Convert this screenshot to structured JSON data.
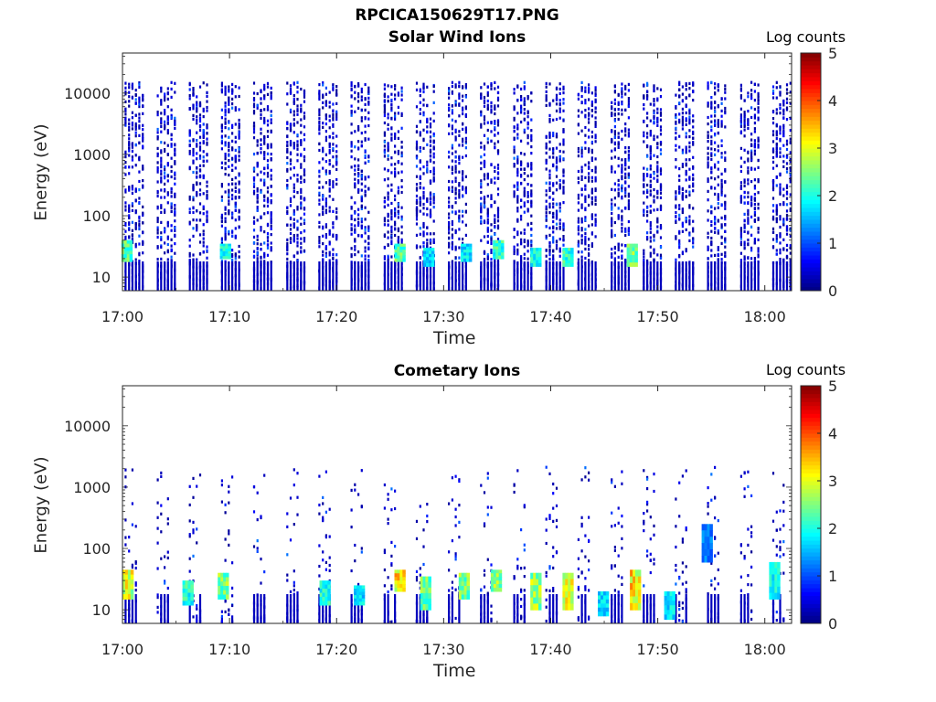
{
  "figure": {
    "title": "RPCICA150629T17.PNG"
  },
  "panels": [
    {
      "title": "Solar Wind Ions",
      "xlabel": "Time",
      "ylabel": "Energy (eV)",
      "colorbar_label": "Log counts"
    },
    {
      "title": "Cometary Ions",
      "xlabel": "Time",
      "ylabel": "Energy (eV)",
      "colorbar_label": "Log counts"
    }
  ],
  "chart_data": [
    {
      "type": "heatmap",
      "title": "Solar Wind Ions",
      "xlabel": "Time",
      "ylabel": "Energy (eV)",
      "x_ticks": [
        "17:00",
        "17:10",
        "17:20",
        "17:30",
        "17:40",
        "17:50",
        "18:00"
      ],
      "y_ticks": [
        10,
        100,
        1000,
        10000
      ],
      "y_scale": "log",
      "ylim": [
        6,
        45000
      ],
      "xlim_minutes": [
        0,
        62.5
      ],
      "colorbar": {
        "label": "Log counts",
        "ticks": [
          0,
          1,
          2,
          3,
          4,
          5
        ],
        "range": [
          0,
          5
        ],
        "colormap": "jet"
      },
      "sweep_start_minutes": [
        0.2,
        3.2,
        6.2,
        9.2,
        12.2,
        15.3,
        18.3,
        21.3,
        24.4,
        27.4,
        30.4,
        33.4,
        36.5,
        39.5,
        42.5,
        45.6,
        48.6,
        51.6,
        54.6,
        57.7,
        60.7
      ],
      "features": [
        {
          "t_minutes": 0.3,
          "energy_ev": [
            18,
            40
          ],
          "log_counts": 2.6
        },
        {
          "t_minutes": 9.5,
          "energy_ev": [
            20,
            35
          ],
          "log_counts": 2.2
        },
        {
          "t_minutes": 25.8,
          "energy_ev": [
            18,
            35
          ],
          "log_counts": 2.6
        },
        {
          "t_minutes": 28.5,
          "energy_ev": [
            15,
            30
          ],
          "log_counts": 2.0
        },
        {
          "t_minutes": 32.0,
          "energy_ev": [
            18,
            35
          ],
          "log_counts": 2.0
        },
        {
          "t_minutes": 35.0,
          "energy_ev": [
            20,
            40
          ],
          "log_counts": 2.4
        },
        {
          "t_minutes": 38.5,
          "energy_ev": [
            15,
            30
          ],
          "log_counts": 2.2
        },
        {
          "t_minutes": 41.5,
          "energy_ev": [
            15,
            30
          ],
          "log_counts": 2.4
        },
        {
          "t_minutes": 47.5,
          "energy_ev": [
            15,
            35
          ],
          "log_counts": 2.8
        }
      ],
      "grid": false
    },
    {
      "type": "heatmap",
      "title": "Cometary Ions",
      "xlabel": "Time",
      "ylabel": "Energy (eV)",
      "x_ticks": [
        "17:00",
        "17:10",
        "17:20",
        "17:30",
        "17:40",
        "17:50",
        "18:00"
      ],
      "y_ticks": [
        10,
        100,
        1000,
        10000
      ],
      "y_scale": "log",
      "ylim": [
        6,
        45000
      ],
      "xlim_minutes": [
        0,
        62.5
      ],
      "colorbar": {
        "label": "Log counts",
        "ticks": [
          0,
          1,
          2,
          3,
          4,
          5
        ],
        "range": [
          0,
          5
        ],
        "colormap": "jet"
      },
      "sweep_start_minutes": [
        0.2,
        3.2,
        6.2,
        9.2,
        12.2,
        15.3,
        18.3,
        21.3,
        24.4,
        27.4,
        30.4,
        33.4,
        36.5,
        39.5,
        42.5,
        45.6,
        48.6,
        51.6,
        54.6,
        57.7,
        60.7
      ],
      "features": [
        {
          "t_minutes": 0.4,
          "energy_ev": [
            15,
            45
          ],
          "log_counts": 3.3
        },
        {
          "t_minutes": 6.0,
          "energy_ev": [
            12,
            30
          ],
          "log_counts": 2.3
        },
        {
          "t_minutes": 9.3,
          "energy_ev": [
            15,
            40
          ],
          "log_counts": 2.8
        },
        {
          "t_minutes": 18.8,
          "energy_ev": [
            12,
            30
          ],
          "log_counts": 2.3
        },
        {
          "t_minutes": 22.0,
          "energy_ev": [
            12,
            25
          ],
          "log_counts": 2.0
        },
        {
          "t_minutes": 25.8,
          "energy_ev": [
            20,
            45
          ],
          "log_counts": 3.6
        },
        {
          "t_minutes": 28.2,
          "energy_ev": [
            10,
            35
          ],
          "log_counts": 2.7
        },
        {
          "t_minutes": 31.8,
          "energy_ev": [
            15,
            40
          ],
          "log_counts": 2.8
        },
        {
          "t_minutes": 34.8,
          "energy_ev": [
            20,
            45
          ],
          "log_counts": 2.9
        },
        {
          "t_minutes": 38.5,
          "energy_ev": [
            10,
            40
          ],
          "log_counts": 3.0
        },
        {
          "t_minutes": 41.5,
          "energy_ev": [
            10,
            40
          ],
          "log_counts": 3.4
        },
        {
          "t_minutes": 44.8,
          "energy_ev": [
            8,
            20
          ],
          "log_counts": 2.0
        },
        {
          "t_minutes": 47.8,
          "energy_ev": [
            10,
            45
          ],
          "log_counts": 3.6
        },
        {
          "t_minutes": 51.0,
          "energy_ev": [
            7,
            20
          ],
          "log_counts": 2.0
        },
        {
          "t_minutes": 54.5,
          "energy_ev": [
            60,
            250
          ],
          "log_counts": 1.4
        },
        {
          "t_minutes": 60.8,
          "energy_ev": [
            15,
            60
          ],
          "log_counts": 2.1
        }
      ],
      "grid": false
    }
  ]
}
